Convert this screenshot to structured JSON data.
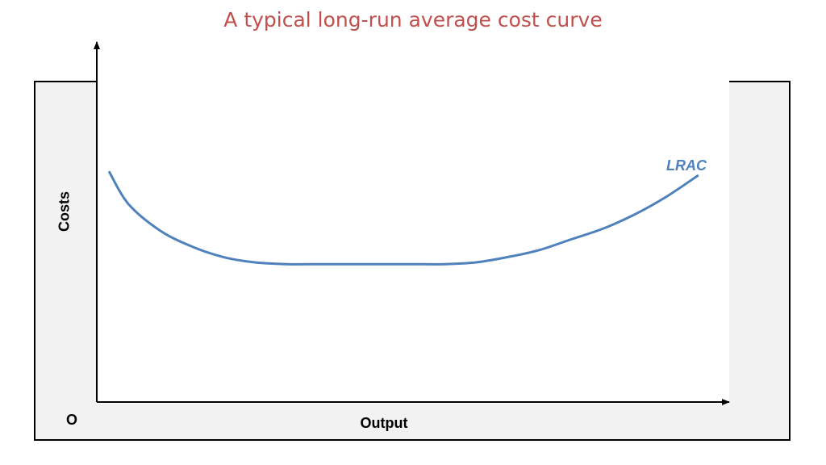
{
  "title": "A typical long-run average cost curve",
  "colors": {
    "title": "#c0504d",
    "curve": "#4f81bd",
    "axis": "#000000",
    "frame_bg": "#f2f2f2"
  },
  "chart_data": {
    "type": "line",
    "title": "A typical long-run average cost curve",
    "xlabel": "Output",
    "ylabel": "Costs",
    "origin_label": "O",
    "xlim": [
      0,
      100
    ],
    "ylim": [
      0,
      100
    ],
    "grid": false,
    "ticks": false,
    "series": [
      {
        "name": "LRAC",
        "color": "#4f81bd",
        "x": [
          2,
          5,
          10,
          15,
          20,
          25,
          30,
          35,
          40,
          45,
          50,
          55,
          60,
          65,
          70,
          75,
          80,
          85,
          90,
          95
        ],
        "y": [
          65,
          56,
          48.5,
          44,
          41,
          39.5,
          39,
          39,
          39,
          39,
          39,
          39,
          39.5,
          41,
          43,
          46,
          49,
          53,
          58,
          64
        ]
      }
    ]
  }
}
